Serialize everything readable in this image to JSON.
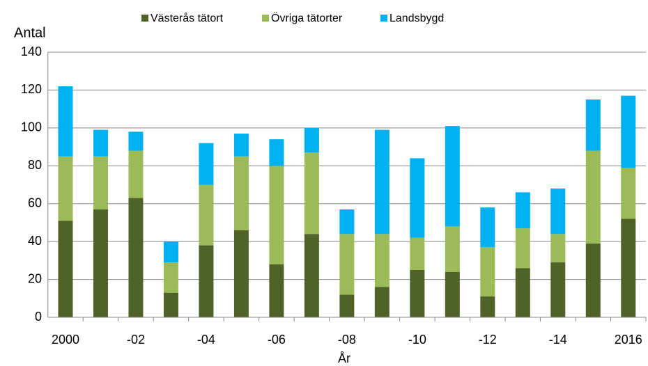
{
  "chart_data": {
    "type": "stacked_bar",
    "ylabel": "Antal",
    "xlabel": "År",
    "categories": [
      "2000",
      null,
      "-02",
      null,
      "-04",
      null,
      "-06",
      null,
      "-08",
      null,
      "-10",
      null,
      "-12",
      null,
      "-14",
      null,
      "2016"
    ],
    "series": [
      {
        "name": "Västerås tätort",
        "color": "#4f6228",
        "values": [
          51,
          57,
          63,
          13,
          38,
          46,
          28,
          44,
          12,
          16,
          25,
          24,
          11,
          26,
          29,
          39,
          52
        ]
      },
      {
        "name": "Övriga tätorter",
        "color": "#9bbb59",
        "values": [
          34,
          28,
          25,
          16,
          32,
          39,
          52,
          43,
          32,
          28,
          17,
          24,
          26,
          21,
          15,
          49,
          27
        ]
      },
      {
        "name": "Landsbygd",
        "color": "#00b0f0",
        "values": [
          37,
          14,
          10,
          11,
          22,
          12,
          14,
          13,
          13,
          55,
          42,
          53,
          21,
          19,
          24,
          27,
          38
        ]
      }
    ],
    "ylim": [
      0,
      140
    ],
    "yticks": [
      0,
      20,
      40,
      60,
      80,
      100,
      120,
      140
    ],
    "grid": true,
    "legend": "top"
  }
}
